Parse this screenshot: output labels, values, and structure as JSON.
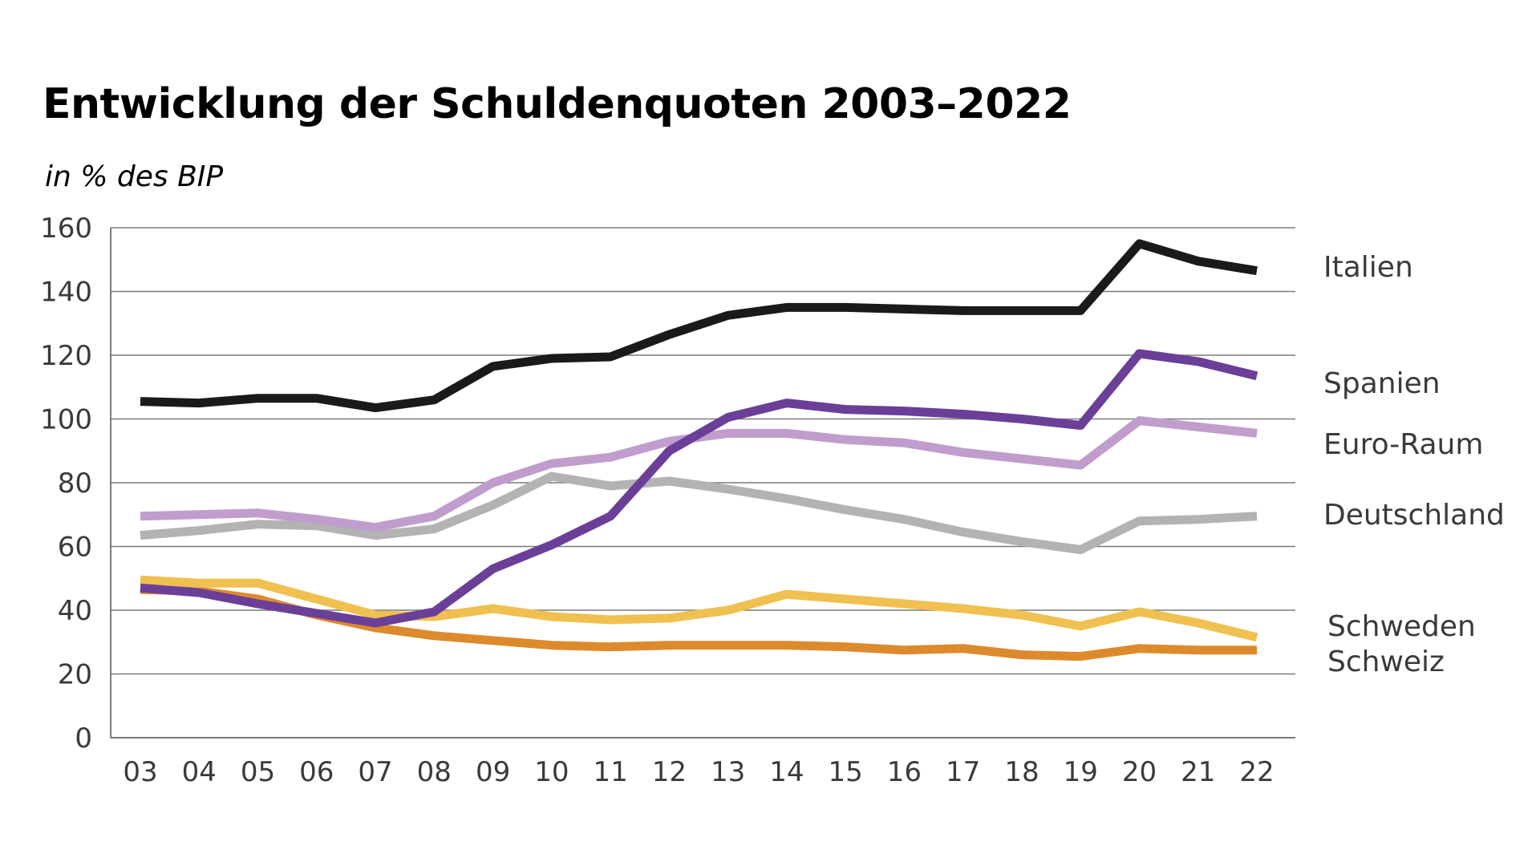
{
  "chart_data": {
    "type": "line",
    "title": "Entwicklung der Schuldenquoten 2003–2022",
    "subtitle": "in % des BIP",
    "xlabel": "",
    "ylabel": "",
    "categories": [
      "03",
      "04",
      "05",
      "06",
      "07",
      "08",
      "09",
      "10",
      "11",
      "12",
      "13",
      "14",
      "15",
      "16",
      "17",
      "18",
      "19",
      "20",
      "21",
      "22"
    ],
    "yticks": [
      0,
      20,
      40,
      60,
      80,
      100,
      120,
      140,
      160
    ],
    "ylim": [
      0,
      160
    ],
    "grid": true,
    "legend": "right-end labels",
    "series": [
      {
        "name": "Italien",
        "color": "#1a1a1a",
        "values": [
          105.5,
          105,
          106.5,
          106.5,
          103.5,
          106,
          116.5,
          119,
          119.5,
          126.5,
          132.5,
          135,
          135,
          134.5,
          134,
          134,
          134,
          155,
          149.5,
          146.5
        ]
      },
      {
        "name": "Spanien",
        "color": "#6b3f98",
        "values": [
          47,
          45.5,
          42,
          39,
          36,
          39.5,
          53,
          60.5,
          69.5,
          90,
          100.5,
          105,
          103,
          102.5,
          101.5,
          100,
          98,
          120.5,
          118,
          113.5
        ]
      },
      {
        "name": "Euro-Raum",
        "color": "#c19dcd",
        "values": [
          69.5,
          70,
          70.5,
          68.5,
          66,
          69.5,
          80,
          86,
          88,
          93,
          95.5,
          95.5,
          93.5,
          92.5,
          89.5,
          87.5,
          85.5,
          99.5,
          97.5,
          95.5
        ]
      },
      {
        "name": "Deutschland",
        "color": "#b3b3b3",
        "values": [
          63.5,
          65,
          67,
          66.5,
          63.5,
          65.5,
          73,
          82,
          79,
          80.5,
          78,
          75,
          71.5,
          68.5,
          64.5,
          61.5,
          59,
          68,
          68.5,
          69.5
        ]
      },
      {
        "name": "Schweden",
        "color": "#f0c050",
        "values": [
          49.5,
          48.5,
          48.5,
          43.5,
          38.5,
          38,
          40.5,
          38,
          37,
          37.5,
          40,
          45,
          43.5,
          42,
          40.5,
          38.5,
          35,
          39.5,
          36,
          31.5
        ]
      },
      {
        "name": "Schweiz",
        "color": "#dd8a2d",
        "values": [
          46.5,
          46,
          43.5,
          38.5,
          34.5,
          32,
          30.5,
          29,
          28.5,
          29,
          29,
          29,
          28.5,
          27.5,
          28,
          26,
          25.5,
          28,
          27.5,
          27.5
        ]
      }
    ]
  }
}
